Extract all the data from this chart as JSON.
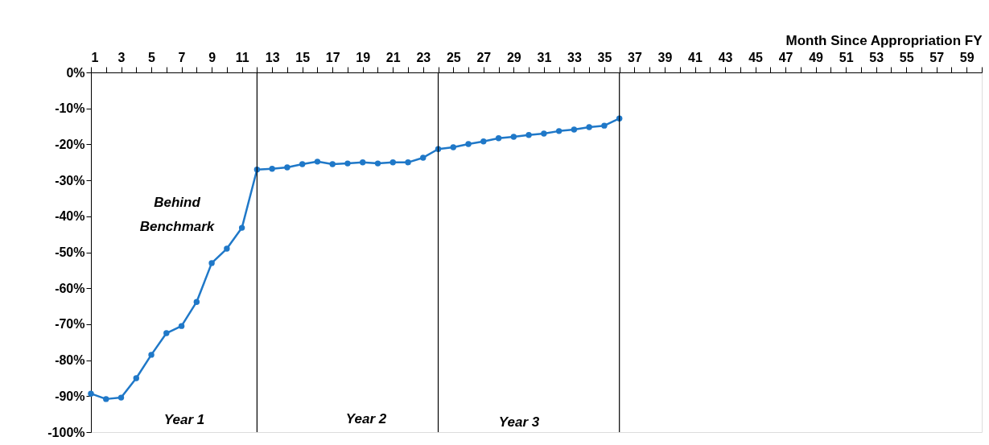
{
  "chart_data": {
    "type": "line",
    "xlabel": "Month Since Appropriation FY",
    "x": [
      1,
      2,
      3,
      4,
      5,
      6,
      7,
      8,
      9,
      10,
      11,
      12,
      13,
      14,
      15,
      16,
      17,
      18,
      19,
      20,
      21,
      22,
      23,
      24,
      25,
      26,
      27,
      28,
      29,
      30,
      31,
      32,
      33,
      34,
      35,
      36
    ],
    "series": [
      {
        "color": "#1f78c8",
        "values": [
          -89.3,
          -90.8,
          -90.4,
          -85,
          -78.5,
          -72.5,
          -70.5,
          -63.8,
          -53,
          -49,
          -43.2,
          -27,
          -26.8,
          -26.4,
          -25.5,
          -24.8,
          -25.5,
          -25.3,
          -25,
          -25.3,
          -25,
          -25,
          -23.7,
          -21.3,
          -20.8,
          -19.9,
          -19.2,
          -18.3,
          -17.9,
          -17.4,
          -17,
          -16.3,
          -15.9,
          -15.2,
          -14.8,
          -12.8
        ]
      }
    ],
    "xlim": [
      1,
      60
    ],
    "xticks": [
      1,
      {
        "value": 2,
        "label": null
      },
      3,
      {
        "value": 4,
        "label": null
      },
      5,
      {
        "value": 6,
        "label": null
      },
      7,
      {
        "value": 8,
        "label": null
      },
      9,
      {
        "value": 10,
        "label": null
      },
      11,
      {
        "value": 12,
        "label": null
      },
      13,
      {
        "value": 14,
        "label": null
      },
      15,
      {
        "value": 16,
        "label": null
      },
      17,
      {
        "value": 18,
        "label": null
      },
      19,
      {
        "value": 20,
        "label": null
      },
      21,
      {
        "value": 22,
        "label": null
      },
      23,
      {
        "value": 24,
        "label": null
      },
      25,
      {
        "value": 26,
        "label": null
      },
      27,
      {
        "value": 28,
        "label": null
      },
      29,
      {
        "value": 30,
        "label": null
      },
      31,
      {
        "value": 32,
        "label": null
      },
      33,
      {
        "value": 34,
        "label": null
      },
      35,
      {
        "value": 36,
        "label": null
      },
      37,
      {
        "value": 38,
        "label": null
      },
      39,
      {
        "value": 40,
        "label": null
      },
      41,
      {
        "value": 42,
        "label": null
      },
      43,
      {
        "value": 44,
        "label": null
      },
      45,
      {
        "value": 46,
        "label": null
      },
      47,
      {
        "value": 48,
        "label": null
      },
      49,
      {
        "value": 50,
        "label": null
      },
      51,
      {
        "value": 52,
        "label": null
      },
      53,
      {
        "value": 54,
        "label": null
      },
      55,
      {
        "value": 56,
        "label": null
      },
      57,
      {
        "value": 58,
        "label": null
      },
      59,
      {
        "value": 60,
        "label": null
      }
    ],
    "ylim": [
      -100,
      0
    ],
    "yticks": [
      {
        "value": 0,
        "label": "0%"
      },
      {
        "value": -10,
        "label": "-10%"
      },
      {
        "value": -20,
        "label": "-20%"
      },
      {
        "value": -30,
        "label": "-30%"
      },
      {
        "value": -40,
        "label": "-40%"
      },
      {
        "value": -50,
        "label": "-50%"
      },
      {
        "value": -60,
        "label": "-60%"
      },
      {
        "value": -70,
        "label": "-70%"
      },
      {
        "value": -80,
        "label": "-80%"
      },
      {
        "value": -90,
        "label": "-90%"
      },
      {
        "value": -100,
        "label": "-100%"
      }
    ],
    "ref_lines": [
      {
        "axis": "x",
        "value": 12,
        "color": "#000000"
      },
      {
        "axis": "x",
        "value": 24,
        "color": "#000000"
      },
      {
        "axis": "x",
        "value": 36,
        "color": "#000000"
      }
    ],
    "annotations": [
      "Behind Benchmark",
      "Year 1",
      "Year 2",
      "Year 3"
    ],
    "marker": "circle",
    "line_style": "solid",
    "grid": false
  }
}
